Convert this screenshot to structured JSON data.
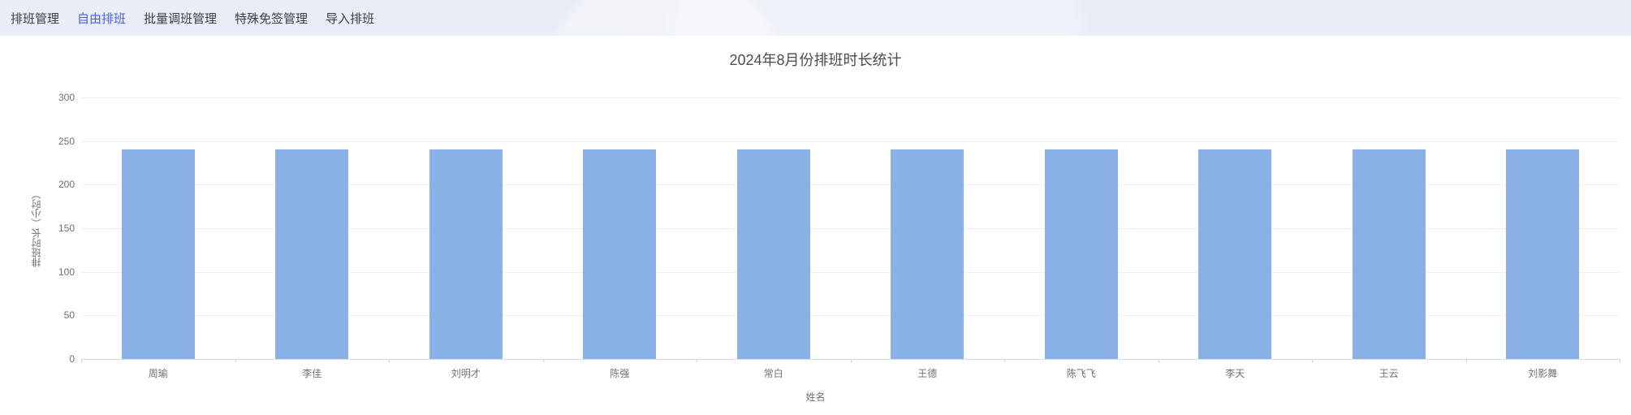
{
  "nav": {
    "bg_color": "#e9edf6",
    "active_color": "#4b5fe0",
    "items": [
      {
        "label": "排班管理",
        "active": false
      },
      {
        "label": "自由排班",
        "active": true
      },
      {
        "label": "批量调班管理",
        "active": false
      },
      {
        "label": "特殊免签管理",
        "active": false
      },
      {
        "label": "导入排班",
        "active": false
      }
    ]
  },
  "chart_data": {
    "type": "bar",
    "title": "2024年8月份排班时长统计",
    "xlabel": "姓名",
    "ylabel": "排班时长（小时）",
    "categories": [
      "周瑜",
      "李佳",
      "刘明才",
      "陈强",
      "常白",
      "王德",
      "陈飞飞",
      "李天",
      "王云",
      "刘影舞"
    ],
    "values": [
      240,
      240,
      240,
      240,
      240,
      240,
      240,
      240,
      240,
      240
    ],
    "ylim": [
      0,
      300
    ],
    "yticks": [
      0,
      50,
      100,
      150,
      200,
      250,
      300
    ],
    "bar_color": "#8ab1e5",
    "grid": true,
    "legend_position": "none"
  }
}
